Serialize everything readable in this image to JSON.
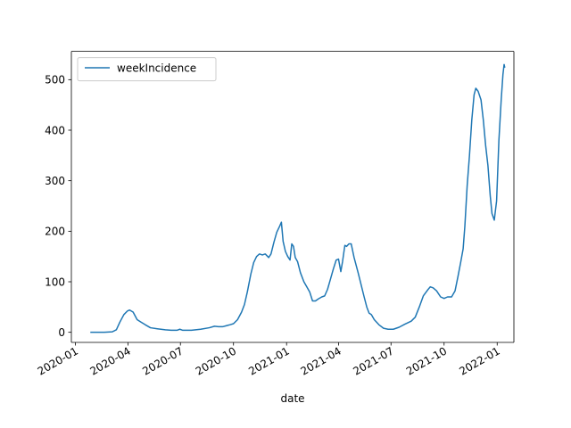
{
  "chart_data": {
    "type": "line",
    "xlabel": "date",
    "ylabel": "",
    "xlim": [
      "2019-12-25",
      "2022-01-30"
    ],
    "ylim": [
      -20,
      556
    ],
    "x_ticks": [
      "2020-01-01",
      "2020-04-01",
      "2020-07-01",
      "2020-10-01",
      "2021-01-01",
      "2021-04-01",
      "2021-07-01",
      "2021-10-01",
      "2022-01-01"
    ],
    "x_tick_labels": [
      "2020-01",
      "2020-04",
      "2020-07",
      "2020-10",
      "2021-01",
      "2021-04",
      "2021-07",
      "2021-10",
      "2022-01"
    ],
    "y_ticks": [
      0,
      100,
      200,
      300,
      400,
      500
    ],
    "y_tick_labels": [
      "0",
      "100",
      "200",
      "300",
      "400",
      "500"
    ],
    "legend": {
      "placement": "upper-left",
      "entries": [
        "weekIncidence"
      ]
    },
    "grid": false,
    "series": [
      {
        "name": "weekIncidence",
        "color": "#1f77b4",
        "points": [
          [
            "2020-01-28",
            0
          ],
          [
            "2020-02-20",
            0
          ],
          [
            "2020-03-05",
            1
          ],
          [
            "2020-03-12",
            5
          ],
          [
            "2020-03-18",
            20
          ],
          [
            "2020-03-25",
            35
          ],
          [
            "2020-03-31",
            42
          ],
          [
            "2020-04-04",
            44
          ],
          [
            "2020-04-10",
            40
          ],
          [
            "2020-04-17",
            25
          ],
          [
            "2020-04-24",
            20
          ],
          [
            "2020-05-01",
            15
          ],
          [
            "2020-05-10",
            9
          ],
          [
            "2020-05-22",
            7
          ],
          [
            "2020-06-05",
            5
          ],
          [
            "2020-06-15",
            4
          ],
          [
            "2020-06-25",
            4
          ],
          [
            "2020-06-30",
            6
          ],
          [
            "2020-07-05",
            4
          ],
          [
            "2020-07-20",
            4
          ],
          [
            "2020-08-05",
            6
          ],
          [
            "2020-08-20",
            9
          ],
          [
            "2020-08-29",
            12
          ],
          [
            "2020-09-05",
            11
          ],
          [
            "2020-09-12",
            11
          ],
          [
            "2020-09-25",
            15
          ],
          [
            "2020-10-01",
            17
          ],
          [
            "2020-10-08",
            25
          ],
          [
            "2020-10-15",
            40
          ],
          [
            "2020-10-20",
            55
          ],
          [
            "2020-10-25",
            80
          ],
          [
            "2020-10-31",
            115
          ],
          [
            "2020-11-05",
            138
          ],
          [
            "2020-11-10",
            150
          ],
          [
            "2020-11-15",
            155
          ],
          [
            "2020-11-20",
            153
          ],
          [
            "2020-11-25",
            155
          ],
          [
            "2020-12-01",
            148
          ],
          [
            "2020-12-05",
            155
          ],
          [
            "2020-12-10",
            178
          ],
          [
            "2020-12-15",
            198
          ],
          [
            "2020-12-20",
            210
          ],
          [
            "2020-12-23",
            218
          ],
          [
            "2020-12-26",
            180
          ],
          [
            "2020-12-30",
            160
          ],
          [
            "2021-01-03",
            150
          ],
          [
            "2021-01-07",
            143
          ],
          [
            "2021-01-10",
            175
          ],
          [
            "2021-01-13",
            170
          ],
          [
            "2021-01-16",
            148
          ],
          [
            "2021-01-20",
            140
          ],
          [
            "2021-01-25",
            118
          ],
          [
            "2021-01-31",
            100
          ],
          [
            "2021-02-05",
            90
          ],
          [
            "2021-02-10",
            80
          ],
          [
            "2021-02-15",
            62
          ],
          [
            "2021-02-20",
            62
          ],
          [
            "2021-02-25",
            66
          ],
          [
            "2021-03-03",
            70
          ],
          [
            "2021-03-08",
            72
          ],
          [
            "2021-03-13",
            85
          ],
          [
            "2021-03-18",
            105
          ],
          [
            "2021-03-23",
            125
          ],
          [
            "2021-03-28",
            143
          ],
          [
            "2021-04-01",
            145
          ],
          [
            "2021-04-05",
            120
          ],
          [
            "2021-04-08",
            140
          ],
          [
            "2021-04-12",
            172
          ],
          [
            "2021-04-15",
            170
          ],
          [
            "2021-04-19",
            175
          ],
          [
            "2021-04-23",
            175
          ],
          [
            "2021-04-28",
            148
          ],
          [
            "2021-05-05",
            118
          ],
          [
            "2021-05-10",
            95
          ],
          [
            "2021-05-15",
            72
          ],
          [
            "2021-05-20",
            50
          ],
          [
            "2021-05-24",
            38
          ],
          [
            "2021-05-28",
            35
          ],
          [
            "2021-06-02",
            25
          ],
          [
            "2021-06-10",
            15
          ],
          [
            "2021-06-18",
            8
          ],
          [
            "2021-06-26",
            6
          ],
          [
            "2021-07-05",
            6
          ],
          [
            "2021-07-15",
            10
          ],
          [
            "2021-07-25",
            16
          ],
          [
            "2021-08-05",
            22
          ],
          [
            "2021-08-12",
            30
          ],
          [
            "2021-08-19",
            50
          ],
          [
            "2021-08-26",
            72
          ],
          [
            "2021-09-02",
            83
          ],
          [
            "2021-09-07",
            90
          ],
          [
            "2021-09-12",
            88
          ],
          [
            "2021-09-18",
            82
          ],
          [
            "2021-09-25",
            70
          ],
          [
            "2021-10-01",
            67
          ],
          [
            "2021-10-07",
            70
          ],
          [
            "2021-10-14",
            70
          ],
          [
            "2021-10-20",
            82
          ],
          [
            "2021-10-25",
            110
          ],
          [
            "2021-10-30",
            140
          ],
          [
            "2021-11-03",
            165
          ],
          [
            "2021-11-06",
            210
          ],
          [
            "2021-11-10",
            290
          ],
          [
            "2021-11-14",
            350
          ],
          [
            "2021-11-18",
            420
          ],
          [
            "2021-11-22",
            470
          ],
          [
            "2021-11-25",
            483
          ],
          [
            "2021-11-29",
            477
          ],
          [
            "2021-12-04",
            460
          ],
          [
            "2021-12-08",
            420
          ],
          [
            "2021-12-12",
            370
          ],
          [
            "2021-12-16",
            330
          ],
          [
            "2021-12-20",
            270
          ],
          [
            "2021-12-23",
            235
          ],
          [
            "2021-12-27",
            222
          ],
          [
            "2021-12-31",
            260
          ],
          [
            "2022-01-04",
            380
          ],
          [
            "2022-01-08",
            460
          ],
          [
            "2022-01-11",
            510
          ],
          [
            "2022-01-13",
            530
          ],
          [
            "2022-01-14",
            525
          ]
        ]
      }
    ]
  }
}
